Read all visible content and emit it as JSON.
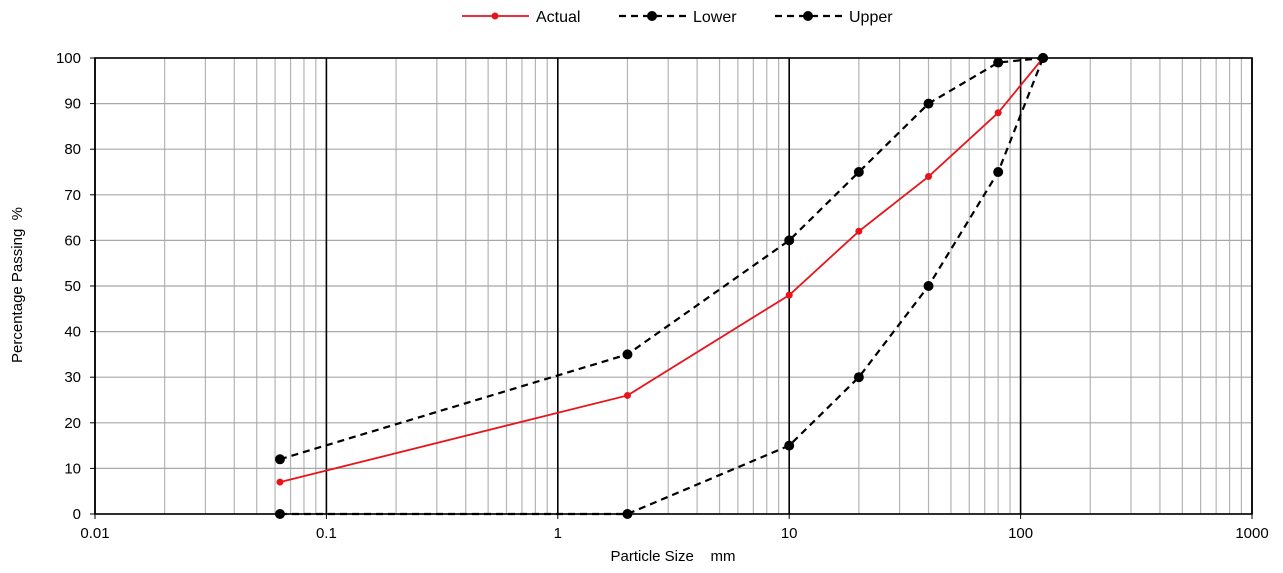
{
  "chart_data": {
    "type": "line",
    "xscale": "log",
    "xlabel": "Particle Size    mm",
    "ylabel": "Percentage Passing  %",
    "xlim": [
      0.01,
      1000
    ],
    "ylim": [
      0,
      100
    ],
    "xticks": [
      0.01,
      0.1,
      1,
      10,
      100,
      1000
    ],
    "xtick_labels": [
      "0.01",
      "0.1",
      "1",
      "10",
      "100",
      "1000"
    ],
    "yticks": [
      0,
      10,
      20,
      30,
      40,
      50,
      60,
      70,
      80,
      90,
      100
    ],
    "ytick_labels": [
      "0",
      "10",
      "20",
      "30",
      "40",
      "50",
      "60",
      "70",
      "80",
      "90",
      "100"
    ],
    "grid": true,
    "legend_position": "top-center",
    "series": [
      {
        "name": "Actual",
        "color": "#e8141c",
        "dash": "solid",
        "x": [
          0.063,
          2,
          10,
          20,
          40,
          80,
          125
        ],
        "y": [
          7,
          26,
          48,
          62,
          74,
          88,
          100
        ]
      },
      {
        "name": "Lower",
        "color": "#000000",
        "dash": "dashed",
        "x": [
          0.063,
          2,
          10,
          20,
          40,
          80,
          125
        ],
        "y": [
          12,
          35,
          60,
          75,
          90,
          99,
          100
        ]
      },
      {
        "name": "Upper",
        "color": "#000000",
        "dash": "dashed",
        "x": [
          0.063,
          2,
          10,
          20,
          40,
          80,
          125
        ],
        "y": [
          0,
          0,
          15,
          30,
          50,
          75,
          100
        ]
      }
    ]
  }
}
